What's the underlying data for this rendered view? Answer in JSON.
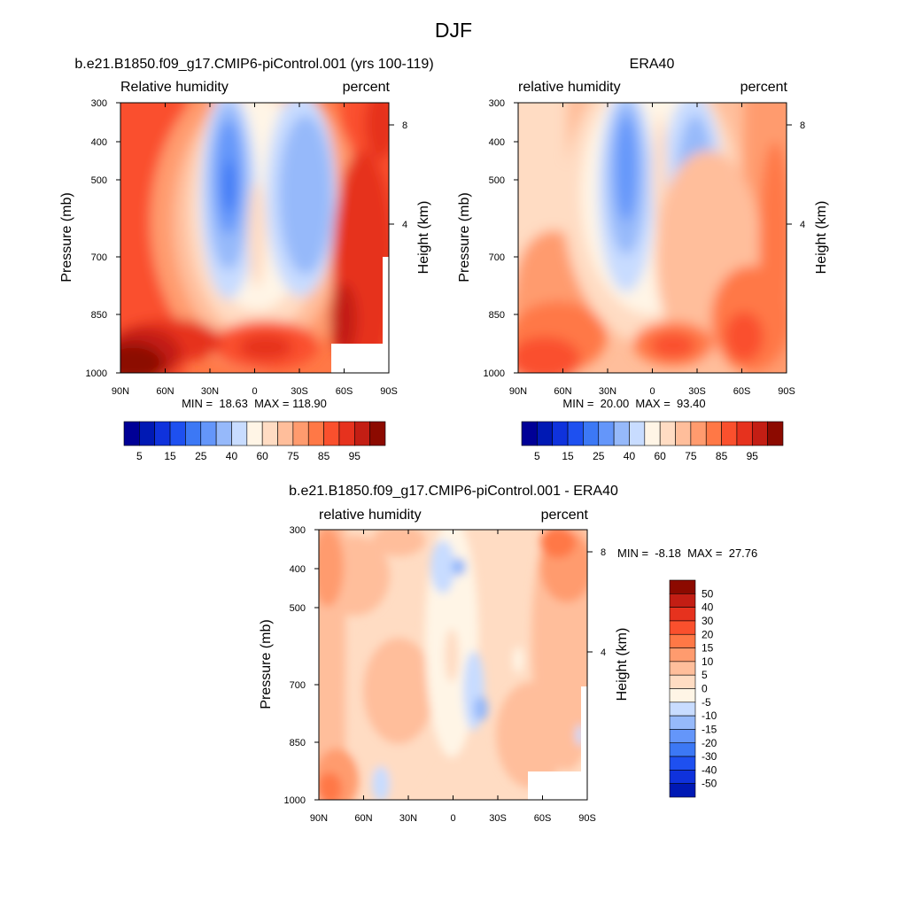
{
  "figure": {
    "title": "DJF"
  },
  "palettes": {
    "rh": [
      "#000096",
      "#0019b4",
      "#0f32dc",
      "#1e50f0",
      "#3c78f5",
      "#6496fa",
      "#96b9fa",
      "#c8dcff",
      "#fff5e6",
      "#ffdcc3",
      "#ffbe9b",
      "#ff9b6e",
      "#ff7846",
      "#fa502d",
      "#e6321e",
      "#c31e14",
      "#8c0a00"
    ],
    "diff": [
      "#000096",
      "#0019b4",
      "#0f32dc",
      "#1e50f0",
      "#3c78f5",
      "#6496fa",
      "#96b9fa",
      "#c8dcff",
      "#fff5e6",
      "#ffdcc3",
      "#ffbe9b",
      "#ff9b6e",
      "#ff7846",
      "#fa502d",
      "#e6321e",
      "#c31e14",
      "#8c0a00"
    ]
  },
  "colorbars": {
    "rh_labels": [
      "5",
      "15",
      "25",
      "40",
      "60",
      "75",
      "85",
      "95"
    ],
    "diff_labels": [
      "50",
      "40",
      "30",
      "20",
      "15",
      "10",
      "5",
      "0",
      "-5",
      "-10",
      "-15",
      "-20",
      "-30",
      "-40",
      "-50"
    ]
  },
  "axes": {
    "x_ticks": [
      "90N",
      "60N",
      "30N",
      "0",
      "30S",
      "60S",
      "90S"
    ],
    "p_ticks": [
      "300",
      "400",
      "500",
      "700",
      "850",
      "1000"
    ],
    "h_ticks": [
      "8",
      "4"
    ],
    "left_label": "Pressure (mb)",
    "right_label": "Height (km)"
  },
  "chart_data": [
    {
      "type": "heatmap",
      "title": "b.e21.B1850.f09_g17.CMIP6-piControl.001 (yrs 100-119)",
      "left_string": "Relative humidity",
      "right_string": "percent",
      "stats": "MIN =  18.63  MAX = 118.90",
      "min": 18.63,
      "max": 118.9,
      "x": [
        "90N",
        "60N",
        "30N",
        "0",
        "30S",
        "60S",
        "90S"
      ],
      "y_pressure_mb": [
        300,
        400,
        500,
        700,
        850,
        1000
      ],
      "y_height_km": [
        8,
        4
      ],
      "levels": [
        5,
        10,
        15,
        20,
        25,
        30,
        40,
        50,
        60,
        65,
        70,
        75,
        80,
        85,
        90,
        95
      ],
      "features": [
        {
          "lat": -90,
          "p": 970,
          "value": 100
        },
        {
          "lat": -20,
          "p": 450,
          "value": 15
        },
        {
          "lat": 20,
          "p": 480,
          "value": 33
        },
        {
          "lat": 80,
          "p": 850,
          "value": 95
        },
        {
          "lat": 0,
          "p": 940,
          "value": 85
        }
      ]
    },
    {
      "type": "heatmap",
      "title": "ERA40",
      "left_string": "relative humidity",
      "right_string": "percent",
      "stats": "MIN =  20.00  MAX =  93.40",
      "min": 20.0,
      "max": 93.4,
      "x": [
        "90N",
        "60N",
        "30N",
        "0",
        "30S",
        "60S",
        "90S"
      ],
      "y_pressure_mb": [
        300,
        400,
        500,
        700,
        850,
        1000
      ],
      "y_height_km": [
        8,
        4
      ],
      "levels": [
        5,
        10,
        15,
        20,
        25,
        30,
        40,
        50,
        60,
        65,
        70,
        75,
        80,
        85,
        90,
        95
      ],
      "features": [
        {
          "lat": -90,
          "p": 970,
          "value": 85
        },
        {
          "lat": -18,
          "p": 450,
          "value": 20
        },
        {
          "lat": 20,
          "p": 480,
          "value": 35
        },
        {
          "lat": 60,
          "p": 900,
          "value": 85
        },
        {
          "lat": 0,
          "p": 930,
          "value": 80
        }
      ]
    },
    {
      "type": "heatmap",
      "title": "b.e21.B1850.f09_g17.CMIP6-piControl.001 - ERA40",
      "left_string": "relative humidity",
      "right_string": "percent",
      "stats": "MIN =  -8.18  MAX =  27.76",
      "min": -8.18,
      "max": 27.76,
      "x": [
        "90N",
        "60N",
        "30N",
        "0",
        "30S",
        "60S",
        "90S"
      ],
      "y_pressure_mb": [
        300,
        400,
        500,
        700,
        850,
        1000
      ],
      "y_height_km": [
        8,
        4
      ],
      "levels": [
        -50,
        -40,
        -30,
        -20,
        -15,
        -10,
        -5,
        0,
        5,
        10,
        15,
        20,
        30,
        40,
        50
      ],
      "features": [
        {
          "lat": -90,
          "p": 960,
          "value": 20
        },
        {
          "lat": -85,
          "p": 400,
          "value": 15
        },
        {
          "lat": 60,
          "p": 350,
          "value": 15
        },
        {
          "lat": -5,
          "p": 650,
          "value": -5
        },
        {
          "lat": 18,
          "p": 760,
          "value": -8
        }
      ]
    }
  ]
}
